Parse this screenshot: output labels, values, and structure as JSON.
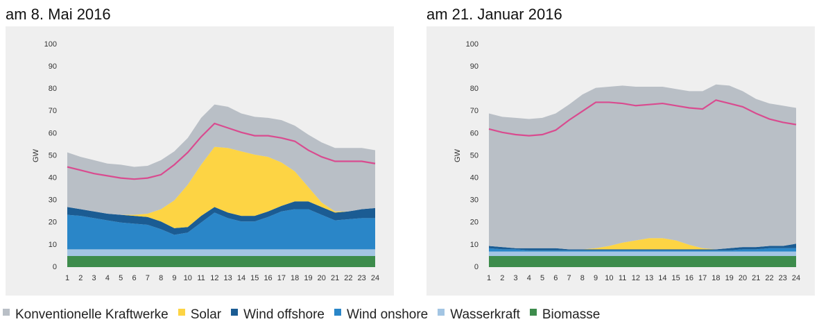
{
  "chart_data": [
    {
      "type": "area",
      "title": "am 8. Mai 2016",
      "ylabel": "GW",
      "x": [
        1,
        2,
        3,
        4,
        5,
        6,
        7,
        8,
        9,
        10,
        11,
        12,
        13,
        14,
        15,
        16,
        17,
        18,
        19,
        20,
        21,
        22,
        23,
        24
      ],
      "ylim": [
        0,
        100
      ],
      "yticks": [
        0,
        10,
        20,
        30,
        40,
        50,
        60,
        70,
        80,
        90,
        100
      ],
      "series": [
        {
          "values": [
            5,
            5,
            5,
            5,
            5,
            5,
            5,
            5,
            5,
            5,
            5,
            5,
            5,
            5,
            5,
            5,
            5,
            5,
            5,
            5,
            5,
            5,
            5,
            5
          ]
        },
        {
          "values": [
            3,
            3,
            3,
            3,
            3,
            3,
            3,
            3,
            3,
            3,
            3,
            3,
            3,
            3,
            3,
            3,
            3,
            3,
            3,
            3,
            3,
            3,
            3,
            3
          ]
        },
        {
          "values": [
            15.5,
            15,
            14,
            13,
            12,
            11.5,
            11,
            9,
            6.5,
            7.5,
            12,
            16.5,
            14,
            12.5,
            12.5,
            14.5,
            17,
            18,
            18,
            15.5,
            13,
            13.5,
            14,
            14
          ]
        },
        {
          "values": [
            3.5,
            3,
            3,
            3,
            3.5,
            3.5,
            3.5,
            3.5,
            3,
            2.5,
            3,
            2.5,
            2.5,
            2.5,
            2.5,
            2.5,
            2.5,
            3.5,
            3.5,
            3.5,
            3.5,
            3.5,
            4,
            4.5
          ]
        },
        {
          "values": [
            0,
            0,
            0,
            0,
            0,
            0.5,
            1.5,
            5.5,
            12.5,
            19,
            23,
            27,
            29,
            29,
            27.5,
            24.5,
            19.5,
            13.5,
            6.5,
            2,
            0.5,
            0,
            0,
            0
          ]
        },
        {
          "values": [
            24.5,
            23.5,
            23,
            22.5,
            22.5,
            21.5,
            21.5,
            22,
            22,
            21,
            21,
            19,
            18.5,
            17,
            17,
            17.5,
            19,
            20.5,
            23.5,
            27,
            28.5,
            28.5,
            27.5,
            26
          ]
        }
      ],
      "line": {
        "color": "#d94b8f",
        "values": [
          45,
          43.5,
          42,
          41,
          40,
          39.5,
          40,
          41.5,
          46,
          51.5,
          58.5,
          64.5,
          62.5,
          60.5,
          59,
          59,
          58,
          56.5,
          52.5,
          49.5,
          47.5,
          47.5,
          47.5,
          46.5
        ]
      }
    },
    {
      "type": "area",
      "title": "am 21. Januar 2016",
      "ylabel": "GW",
      "x": [
        1,
        2,
        3,
        4,
        5,
        6,
        7,
        8,
        9,
        10,
        11,
        12,
        13,
        14,
        15,
        16,
        17,
        18,
        19,
        20,
        21,
        22,
        23,
        24
      ],
      "ylim": [
        0,
        100
      ],
      "yticks": [
        0,
        10,
        20,
        30,
        40,
        50,
        60,
        70,
        80,
        90,
        100
      ],
      "series": [
        {
          "values": [
            5,
            5,
            5,
            5,
            5,
            5,
            5,
            5,
            5,
            5,
            5,
            5,
            5,
            5,
            5,
            5,
            5,
            5,
            5,
            5,
            5,
            5,
            5,
            5
          ]
        },
        {
          "values": [
            2,
            2,
            2,
            2,
            2,
            2,
            2,
            2,
            2,
            2,
            2,
            2,
            2,
            2,
            2,
            2,
            2,
            2,
            2,
            2,
            2,
            2,
            2,
            2
          ]
        },
        {
          "values": [
            1.5,
            1,
            1,
            0.5,
            0.5,
            0.5,
            0.5,
            0.5,
            0.5,
            0.5,
            0.5,
            0.5,
            0.5,
            0.5,
            0.5,
            0.5,
            0.5,
            0.5,
            0.5,
            1,
            1,
            1.5,
            1.5,
            1.5
          ]
        },
        {
          "values": [
            1,
            1,
            0.5,
            1,
            1,
            1,
            0.5,
            0.5,
            0.5,
            0.5,
            0.5,
            0.5,
            0.5,
            0.5,
            0.5,
            0.5,
            0.5,
            0.5,
            1,
            1,
            1,
            1,
            1,
            2
          ]
        },
        {
          "values": [
            0,
            0,
            0,
            0,
            0,
            0,
            0,
            0,
            0.5,
            1.5,
            3,
            4,
            5,
            5,
            4,
            2,
            0.5,
            0,
            0,
            0,
            0,
            0,
            0,
            0
          ]
        },
        {
          "values": [
            59.5,
            58.5,
            58.5,
            58,
            58.5,
            60.5,
            65,
            69.5,
            72,
            71.5,
            70.5,
            69,
            68,
            68,
            68,
            69,
            70.5,
            74,
            73,
            70,
            66.5,
            64,
            63,
            61
          ]
        }
      ],
      "line": {
        "color": "#d94b8f",
        "values": [
          62,
          60.5,
          59.5,
          59,
          59.5,
          61.5,
          66,
          70,
          74,
          74,
          73.5,
          72.5,
          73,
          73.5,
          72.5,
          71.5,
          71,
          75,
          73.5,
          72,
          69,
          66.5,
          65,
          64
        ]
      }
    }
  ],
  "legend": [
    {
      "name": "Biomasse",
      "color": "#3d8c4c"
    },
    {
      "name": "Wasserkraft",
      "color": "#a3c5e3"
    },
    {
      "name": "Wind onshore",
      "color": "#2a86c8"
    },
    {
      "name": "Wind offshore",
      "color": "#1b5c93"
    },
    {
      "name": "Solar",
      "color": "#fdd444"
    },
    {
      "name": "Konventionelle Kraftwerke",
      "color": "#b9bfc6"
    }
  ]
}
